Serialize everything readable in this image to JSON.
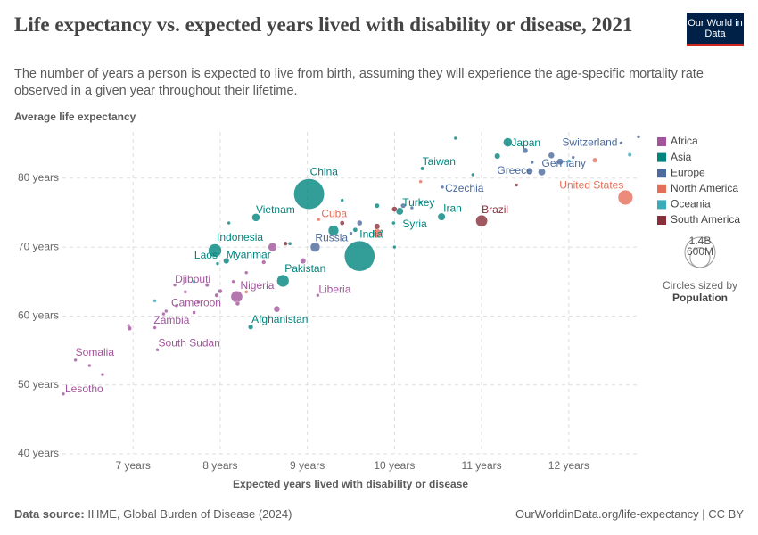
{
  "header": {
    "title": "Life expectancy vs. expected years lived with disability or disease, 2021",
    "subtitle": "The number of years a person is expected to live from birth, assuming they will experience the age-specific mortality rate observed in a given year throughout their lifetime.",
    "logo": "Our World in Data"
  },
  "footer": {
    "source_label": "Data source:",
    "source": "IHME, Global Burden of Disease (2024)",
    "url": "OurWorldinData.org/life-expectancy | CC BY"
  },
  "chart_data": {
    "type": "scatter",
    "y_label": "Average life expectancy",
    "x_label": "Expected years lived with disability or disease",
    "xlim": [
      6.19,
      12.8
    ],
    "xticks": [
      {
        "value": 7,
        "label": "7 years"
      },
      {
        "value": 8,
        "label": "8 years"
      },
      {
        "value": 9,
        "label": "9 years"
      },
      {
        "value": 10,
        "label": "10 years"
      },
      {
        "value": 11,
        "label": "11 years"
      },
      {
        "value": 12,
        "label": "12 years"
      }
    ],
    "ylim": [
      40,
      86.7
    ],
    "yticks": [
      {
        "value": 40,
        "label": "40 years"
      },
      {
        "value": 50,
        "label": "50 years"
      },
      {
        "value": 60,
        "label": "60 years"
      },
      {
        "value": 70,
        "label": "70 years"
      },
      {
        "value": 80,
        "label": "80 years"
      }
    ],
    "grid": true,
    "size_legend": {
      "title": "Circles sized by",
      "variable": "Population",
      "sizes": [
        {
          "value": 1400,
          "label": "1.4B"
        },
        {
          "value": 600,
          "label": "600M"
        }
      ]
    },
    "series": [
      {
        "name": "Africa",
        "color": "#a2559c",
        "labels": [
          "Lesotho",
          "Somalia",
          "Zambia",
          "South Sudan",
          "Cameroon",
          "Djibouti",
          "Nigeria",
          "Liberia",
          null,
          null,
          null,
          null,
          null,
          null,
          null,
          null,
          null,
          null,
          null,
          null,
          null,
          null,
          null,
          null,
          null,
          null,
          null
        ],
        "x": [
          6.2,
          6.34,
          7.35,
          7.28,
          7.96,
          7.48,
          8.19,
          9.12,
          6.95,
          6.96,
          6.65,
          6.5,
          7.25,
          7.38,
          7.5,
          7.6,
          7.75,
          7.85,
          8.0,
          8.2,
          8.15,
          8.3,
          8.65,
          8.95,
          8.6,
          7.7,
          8.5
        ],
        "values": [
          48.7,
          53.6,
          60.3,
          55.1,
          63.0,
          64.5,
          62.8,
          63.0,
          58.6,
          58.2,
          51.5,
          52.8,
          58.3,
          60.7,
          61.5,
          63.5,
          62.0,
          64.5,
          63.6,
          61.8,
          65.0,
          66.3,
          61.0,
          68.0,
          70.0,
          60.5,
          67.8
        ],
        "sizes": [
          2.3,
          17,
          19,
          11,
          27,
          1.1,
          213,
          5.2,
          2,
          30,
          5,
          5,
          10,
          8,
          12,
          5,
          15,
          25,
          30,
          30,
          6,
          18,
          60,
          50,
          115,
          20,
          27
        ]
      },
      {
        "name": "Asia",
        "color": "#00847e",
        "labels": [
          "China",
          "India",
          "Indonesia",
          "Pakistan",
          "Vietnam",
          "Japan",
          "Taiwan",
          "Turkey",
          "Iran",
          "Syria",
          "Myanmar",
          "Laos",
          "Afghanistan",
          null,
          null,
          null,
          null,
          null,
          null,
          null,
          null,
          null,
          null,
          null,
          null
        ],
        "x": [
          9.02,
          9.6,
          7.94,
          8.72,
          8.41,
          11.3,
          10.32,
          10.06,
          10.54,
          9.99,
          8.07,
          7.97,
          8.35,
          11.18,
          10.9,
          9.85,
          9.55,
          9.8,
          10.3,
          8.1,
          10.7,
          9.4,
          10.0,
          8.8,
          9.3
        ],
        "values": [
          77.7,
          68.7,
          69.5,
          65.1,
          74.3,
          85.2,
          81.4,
          75.2,
          74.4,
          73.5,
          68.0,
          67.6,
          58.4,
          83.2,
          80.5,
          72.3,
          72.5,
          76.0,
          76.5,
          73.5,
          85.8,
          76.8,
          70.0,
          70.5,
          72.4
        ],
        "sizes": [
          1425,
          1408,
          273,
          231,
          98,
          125,
          24,
          85,
          88,
          21,
          54,
          7.4,
          40,
          52,
          5.6,
          7,
          33,
          35,
          10,
          17,
          7.5,
          4,
          10,
          20,
          169
        ]
      },
      {
        "name": "Europe",
        "color": "#4c6a9c",
        "labels": [
          "Switzerland",
          "Germany",
          "Greece",
          "Czechia",
          "Russia",
          null,
          null,
          null,
          null,
          null,
          null,
          null,
          null,
          null,
          null
        ],
        "x": [
          12.6,
          11.69,
          11.58,
          10.55,
          9.09,
          12.8,
          11.5,
          11.8,
          11.9,
          10.1,
          11.55,
          9.6,
          9.5,
          10.2,
          12.05
        ],
        "values": [
          85.1,
          80.9,
          82.3,
          78.7,
          70.0,
          86.0,
          84.0,
          83.3,
          82.4,
          76.0,
          81.0,
          73.5,
          72.0,
          75.7,
          83.0
        ],
        "sizes": [
          8.7,
          83,
          10,
          10.5,
          145,
          0.5,
          47,
          59,
          65,
          38,
          67,
          44,
          9.4,
          10,
          5.4
        ]
      },
      {
        "name": "North America",
        "color": "#e56e5a",
        "labels": [
          "United States",
          "Cuba",
          null,
          null,
          null,
          null
        ],
        "x": [
          12.65,
          9.13,
          10.3,
          9.8,
          12.3,
          8.3
        ],
        "values": [
          77.2,
          74.0,
          79.5,
          72.0,
          82.6,
          63.5
        ],
        "sizes": [
          336,
          11,
          5,
          127,
          38,
          11
        ]
      },
      {
        "name": "Oceania",
        "color": "#38aaba",
        "labels": [
          null,
          null,
          null,
          null
        ],
        "x": [
          12.7,
          12.0,
          7.7,
          7.25
        ],
        "values": [
          83.4,
          82.5,
          65.0,
          62.2
        ],
        "sizes": [
          26,
          5,
          10,
          1
        ]
      },
      {
        "name": "South America",
        "color": "#883039",
        "labels": [
          "Brazil",
          null,
          null,
          null,
          null,
          null
        ],
        "x": [
          11.0,
          11.4,
          9.4,
          10.0,
          9.8,
          8.75
        ],
        "values": [
          73.8,
          79.0,
          73.5,
          75.5,
          73.0,
          70.5
        ],
        "sizes": [
          214,
          19,
          34,
          45,
          52,
          28
        ]
      }
    ]
  }
}
